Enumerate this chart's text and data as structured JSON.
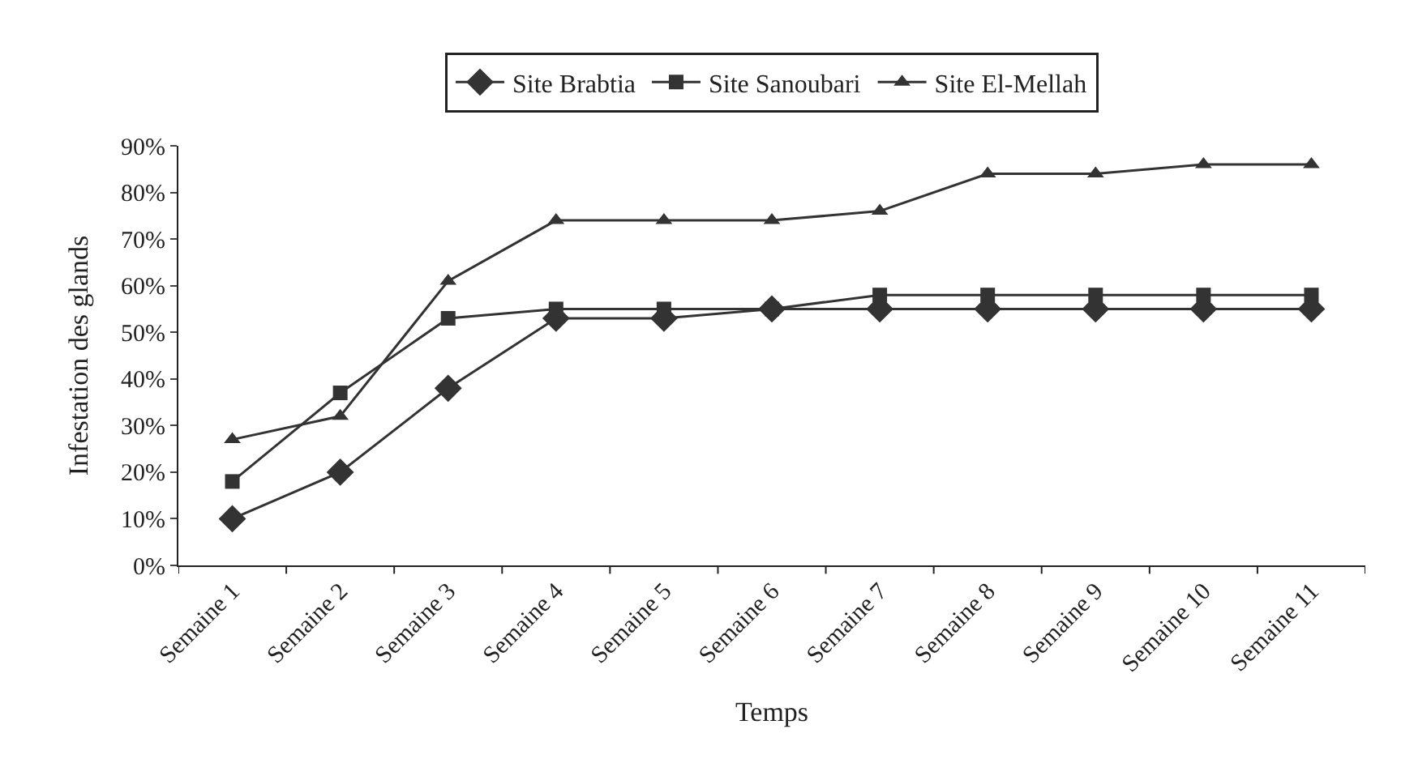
{
  "chart_data": {
    "type": "line",
    "xlabel": "Temps",
    "ylabel": "Infestation des glands",
    "categories": [
      "Semaine 1",
      "Semaine 2",
      "Semaine 3",
      "Semaine 4",
      "Semaine 5",
      "Semaine 6",
      "Semaine 7",
      "Semaine 8",
      "Semaine 9",
      "Semaine 10",
      "Semaine 11"
    ],
    "series": [
      {
        "name": "Site Brabtia",
        "color": "#333333",
        "marker": "diamond",
        "values": [
          10,
          20,
          38,
          53,
          53,
          55,
          55,
          55,
          55,
          55,
          55
        ]
      },
      {
        "name": "Site Sanoubari",
        "color": "#333333",
        "marker": "square",
        "values": [
          18,
          37,
          53,
          55,
          55,
          55,
          58,
          58,
          58,
          58,
          58
        ]
      },
      {
        "name": "Site El-Mellah",
        "color": "#333333",
        "marker": "triangle",
        "values": [
          27,
          32,
          61,
          74,
          74,
          74,
          76,
          84,
          84,
          86,
          86
        ]
      }
    ],
    "ylim": [
      0,
      90
    ],
    "yticks": [
      {
        "value": 0,
        "label": "0%"
      },
      {
        "value": 10,
        "label": "10%"
      },
      {
        "value": 20,
        "label": "20%"
      },
      {
        "value": 30,
        "label": "30%"
      },
      {
        "value": 40,
        "label": "40%"
      },
      {
        "value": 50,
        "label": "50%"
      },
      {
        "value": 60,
        "label": "60%"
      },
      {
        "value": 70,
        "label": "70%"
      },
      {
        "value": 80,
        "label": "80%"
      },
      {
        "value": 90,
        "label": "90%"
      }
    ],
    "legend": "top",
    "line_style": "solid"
  }
}
